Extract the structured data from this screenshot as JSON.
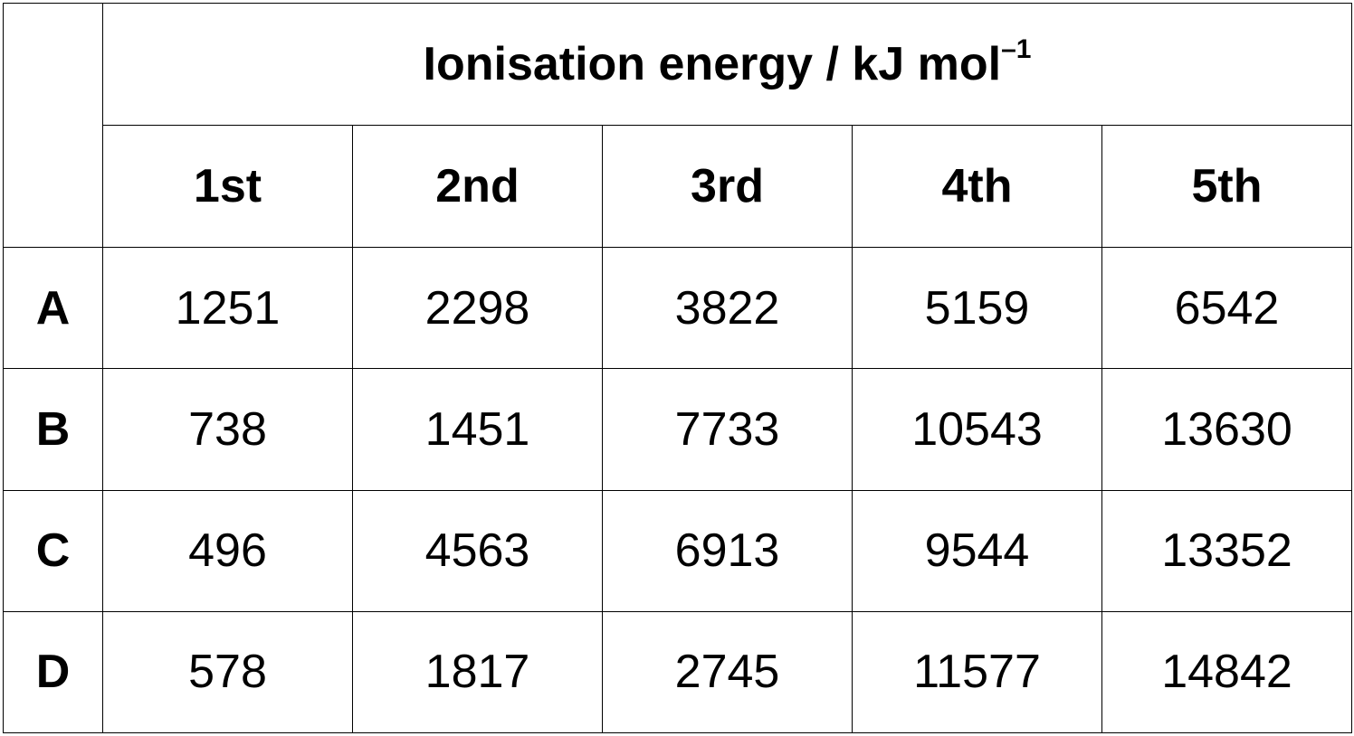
{
  "table": {
    "header": {
      "title": "Ionisation energy / kJ mol",
      "title_superscript": "–1"
    },
    "columns": [
      "1st",
      "2nd",
      "3rd",
      "4th",
      "5th"
    ],
    "rows": [
      {
        "label": "A",
        "values": [
          "1251",
          "2298",
          "3822",
          "5159",
          "6542"
        ]
      },
      {
        "label": "B",
        "values": [
          "738",
          "1451",
          "7733",
          "10543",
          "13630"
        ]
      },
      {
        "label": "C",
        "values": [
          "496",
          "4563",
          "6913",
          "9544",
          "13352"
        ]
      },
      {
        "label": "D",
        "values": [
          "578",
          "1817",
          "2745",
          "11577",
          "14842"
        ]
      }
    ]
  }
}
